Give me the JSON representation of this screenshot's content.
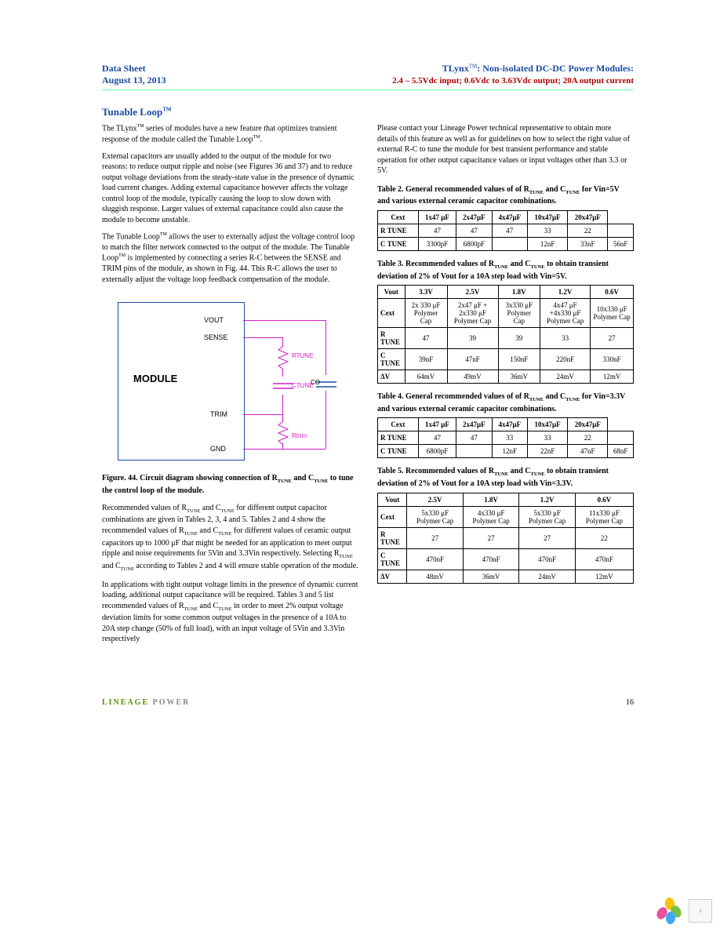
{
  "header": {
    "datasheet_label": "Data Sheet",
    "date": "August 13, 2013",
    "product": "TLynx",
    "product_suffix": ": Non-isolated DC-DC Power Modules:",
    "subtitle": "2.4 – 5.5Vdc input; 0.6Vdc to 3.63Vdc output; 20A output current"
  },
  "section_title": "Tunable Loop",
  "left_col": {
    "p1_a": "The TLynx",
    "p1_b": " series of modules have a new feature that optimizes transient response of the module called the Tunable Loop",
    "p1_c": ".",
    "p2": "External capacitors are usually added to the output of the module for two reasons:  to reduce output ripple and noise (see Figures 36 and 37) and to reduce output voltage deviations from the steady-state value in the presence of dynamic load current changes. Adding external capacitance however affects the voltage control loop of the module, typically causing the loop to slow down with sluggish response.  Larger values of external capacitance could also cause the module to become unstable.",
    "p3_a": "The Tunable Loop",
    "p3_b": " allows the user to externally adjust the voltage control loop to match the filter network connected to the output of the module. The Tunable Loop",
    "p3_c": " is implemented by connecting a series R-C between the SENSE and TRIM pins of the module, as shown in Fig. 44. This R-C allows the user to externally adjust the voltage loop feedback compensation of the module.",
    "fig44_caption_a": "Figure. 44. Circuit diagram showing connection of R",
    "fig44_caption_b": " and C",
    "fig44_caption_c": " to tune the control loop of the module.",
    "p4_a": "Recommended values of R",
    "p4_b": " and C",
    "p4_c": " for different output capacitor combinations are given in Tables 2, 3, 4 and 5. Tables 2 and 4 show the recommended values of R",
    "p4_d": " and C",
    "p4_e": " for different values of ceramic output capacitors up to 1000 μF that might be needed for an application to meet output ripple and noise requirements for 5Vin and 3.3Vin respectively. Selecting R",
    "p4_f": " and C",
    "p4_g": " according to Tables 2 and 4 will ensure stable operation of the module.",
    "p5_a": "In applications with tight output voltage limits in the presence of dynamic current loading, additional output capacitance will be required. Tables 3 and 5 list recommended values of R",
    "p5_b": " and C",
    "p5_c": " in order to meet 2% output voltage deviation limits for some common output voltages in the presence of a 10A to 20A step change (50% of full load), with an input voltage of 5Vin and 3.3Vin respectively"
  },
  "right_col": {
    "p1": "Please contact your Lineage Power technical representative to obtain more details of this feature as well as for guidelines on how to select the right value of external R-C to tune the module for best transient performance and stable operation for other output capacitance values or input voltages other than 3.3 or 5V.",
    "t2_caption_a": "Table 2. General recommended values of of R",
    "t2_caption_b": " and C",
    "t2_caption_c": " for Vin=5V and various external ceramic capacitor combinations.",
    "t3_caption_a": "Table 3. Recommended values of R",
    "t3_caption_b": " and C",
    "t3_caption_c": " to obtain transient deviation of 2% of Vout for a 10A step load with Vin=5V.",
    "t4_caption_a": "Table 4. General recommended values of of R",
    "t4_caption_b": " and C",
    "t4_caption_c": " for Vin=3.3V and various external ceramic capacitor combinations.",
    "t5_caption_a": "Table 5. Recommended values of R",
    "t5_caption_b": " and C",
    "t5_caption_c": " to obtain transient deviation of 2% of Vout for a 10A step load with Vin=3.3V."
  },
  "diagram": {
    "module_label": "MODULE",
    "pins": {
      "vout": "VOUT",
      "sense": "SENSE",
      "trim": "TRIM",
      "gnd": "GND"
    },
    "components": {
      "rtune": "RTUNE",
      "ctune": "CTUNE",
      "rtrim": "Rtrim",
      "co": "CO"
    }
  },
  "tables": {
    "t2": {
      "headers": [
        "Cext",
        "1x47 μF",
        "2x47μF",
        "4x47μF",
        "10x47μF",
        "20x47μF"
      ],
      "rows": [
        [
          "R TUNE",
          "47",
          "47",
          "47",
          "33",
          "22",
          ""
        ],
        [
          "C TUNE",
          "3300pF",
          "6800pF",
          "",
          "12nF",
          "33nF",
          "56nF"
        ]
      ]
    },
    "t3": {
      "headers": [
        "Vout",
        "3.3V",
        "2.5V",
        "1.8V",
        "1.2V",
        "0.6V"
      ],
      "rows": [
        [
          "Cext",
          "2x 330 μF Polymer Cap",
          "2x47 μF + 2x330 μF Polymer Cap",
          "3x330 μF Polymer Cap",
          "4x47 μF +4x330 μF Polymer Cap",
          "10x330 μF Polymer Cap"
        ],
        [
          "R TUNE",
          "47",
          "39",
          "39",
          "33",
          "27"
        ],
        [
          "C TUNE",
          "39nF",
          "47nF",
          "150nF",
          "220nF",
          "330nF"
        ],
        [
          "ΔV",
          "64mV",
          "49mV",
          "36mV",
          "24mV",
          "12mV"
        ]
      ]
    },
    "t4": {
      "headers": [
        "Cext",
        "1x47 μF",
        "2x47μF",
        "4x47μF",
        "10x47μF",
        "20x47μF"
      ],
      "rows": [
        [
          "R TUNE",
          "47",
          "47",
          "33",
          "33",
          "22",
          ""
        ],
        [
          "C TUNE",
          "6800pF",
          "",
          "12nF",
          "22nF",
          "47nF",
          "68nF"
        ]
      ]
    },
    "t5": {
      "headers": [
        "Vout",
        "2.5V",
        "1.8V",
        "1.2V",
        "0.6V"
      ],
      "rows": [
        [
          "Cext",
          "5x330 μF Polymer Cap",
          "4x330 μF Polymer Cap",
          "5x330 μF Polymer Cap",
          "11x330 μF Polymer Cap"
        ],
        [
          "R TUNE",
          "27",
          "27",
          "27",
          "22"
        ],
        [
          "C TUNE",
          "470nF",
          "470nF",
          "470nF",
          "470nF"
        ],
        [
          "ΔV",
          "48mV",
          "36mV",
          "24mV",
          "12mV"
        ]
      ]
    }
  },
  "footer": {
    "brand_a": "LINEAGE",
    "brand_b": "POWER",
    "page_num": "16"
  },
  "subscript": "TUNE",
  "tm_text": "TM"
}
